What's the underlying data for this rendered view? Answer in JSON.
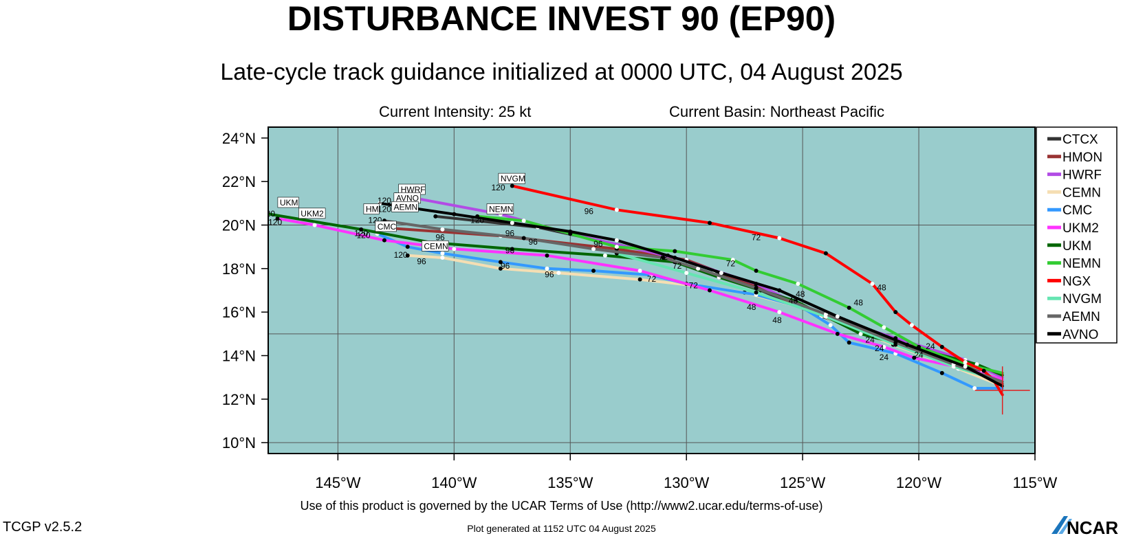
{
  "header": {
    "title": "DISTURBANCE INVEST 90 (EP90)",
    "subtitle": "Late-cycle track guidance initialized at 0000 UTC, 04 August 2025",
    "intensity": "Current Intensity: 25 kt",
    "basin": "Current Basin: Northeast Pacific"
  },
  "footer": {
    "usage": "Use of this product is governed by the UCAR Terms of Use (http://www2.ucar.edu/terms-of-use)",
    "version": "TCGP v2.5.2",
    "generated": "Plot generated at 1152 UTC   04 August 2025",
    "logo_text": "NCAR"
  },
  "chart_data": {
    "type": "line",
    "title": "DISTURBANCE INVEST 90 (EP90)",
    "xlim": [
      -148,
      -115
    ],
    "ylim": [
      9.5,
      24.5
    ],
    "x_ticks": [
      -145,
      -140,
      -135,
      -130,
      -125,
      -120,
      -115
    ],
    "x_tick_labels": [
      "145°W",
      "140°W",
      "135°W",
      "130°W",
      "125°W",
      "120°W",
      "115°W"
    ],
    "y_ticks": [
      10,
      12,
      14,
      16,
      18,
      20,
      22,
      24
    ],
    "y_tick_labels": [
      "10°N",
      "12°N",
      "14°N",
      "16°N",
      "18°N",
      "20°N",
      "22°N",
      "24°N"
    ],
    "grid": true,
    "grid_lines_lon": [
      -145,
      -140,
      -135,
      -130,
      -125,
      -120,
      -115
    ],
    "grid_lines_lat": [
      10,
      15,
      20
    ],
    "legend_position": "right",
    "land_color": "#ffffff",
    "ocean_color": "#99cccc",
    "initial_position": {
      "lon": -116.4,
      "lat": 12.4
    },
    "series": [
      {
        "name": "CTCX",
        "color": "#333333",
        "points": [
          [
            -116.4,
            12.6
          ],
          [
            -117.3,
            13.2
          ],
          [
            -120.2,
            14.5
          ],
          [
            -124.2,
            15.8
          ],
          [
            -126.8,
            17.0
          ],
          [
            -128.8,
            17.9
          ],
          [
            -130.8,
            18.6
          ],
          [
            -136.4,
            19.9
          ],
          [
            -140.8,
            20.4
          ]
        ]
      },
      {
        "name": "HMON",
        "color": "#993333",
        "points": [
          [
            -116.4,
            12.7
          ],
          [
            -118.2,
            13.6
          ],
          [
            -121.0,
            14.7
          ],
          [
            -125.0,
            16.2
          ],
          [
            -127.0,
            17.2
          ],
          [
            -130.0,
            18.4
          ],
          [
            -133.0,
            18.9
          ],
          [
            -138.0,
            19.5
          ],
          [
            -143.3,
            19.9
          ]
        ]
      },
      {
        "name": "HWRF",
        "color": "#b24ce5",
        "points": [
          [
            -116.4,
            13.0
          ],
          [
            -118.0,
            13.8
          ],
          [
            -121.0,
            14.8
          ],
          [
            -124.5,
            16.0
          ],
          [
            -127.0,
            17.3
          ],
          [
            -130.5,
            18.5
          ],
          [
            -135.0,
            19.6
          ],
          [
            -138.0,
            20.5
          ],
          [
            -142.5,
            21.4
          ]
        ],
        "lead_labels": [
          {
            "lon": -143.0,
            "lat": 20.6,
            "text": "120"
          }
        ]
      },
      {
        "name": "CEMN",
        "color": "#f5deb3",
        "points": [
          [
            -116.4,
            12.6
          ],
          [
            -118.3,
            13.4
          ],
          [
            -121.1,
            14.5
          ],
          [
            -125.0,
            16.2
          ],
          [
            -127.5,
            16.9
          ],
          [
            -129.5,
            17.2
          ],
          [
            -132.0,
            17.5
          ],
          [
            -135.5,
            17.8
          ],
          [
            -138.0,
            18.0
          ],
          [
            -140.5,
            18.5
          ],
          [
            -142.0,
            18.6
          ]
        ],
        "lead_labels": [
          {
            "lon": -142.3,
            "lat": 18.5,
            "text": "120"
          }
        ]
      },
      {
        "name": "CMC",
        "color": "#3399ff",
        "points": [
          [
            -116.4,
            12.5
          ],
          [
            -117.6,
            12.5
          ],
          [
            -119.0,
            13.2
          ],
          [
            -121.0,
            14.1
          ],
          [
            -123.0,
            14.6
          ],
          [
            -123.8,
            15.4
          ],
          [
            -125.0,
            16.2
          ],
          [
            -127.0,
            16.8
          ],
          [
            -130.0,
            17.3
          ],
          [
            -131.5,
            17.7
          ],
          [
            -134.0,
            17.9
          ],
          [
            -136.0,
            18.0
          ],
          [
            -138.0,
            18.3
          ],
          [
            -140.5,
            18.7
          ],
          [
            -142.0,
            19.0
          ],
          [
            -143.3,
            19.6
          ]
        ],
        "lead_labels": [
          {
            "lon": -141.4,
            "lat": 18.2,
            "text": "96"
          },
          {
            "lon": -137.8,
            "lat": 18.0,
            "text": "96"
          },
          {
            "lon": -135.9,
            "lat": 17.6,
            "text": "96"
          },
          {
            "lon": -131.5,
            "lat": 17.4,
            "text": "72"
          },
          {
            "lon": -129.7,
            "lat": 17.1,
            "text": "72"
          },
          {
            "lon": -143.9,
            "lat": 19.4,
            "text": "120"
          }
        ]
      },
      {
        "name": "UKM2",
        "color": "#ff33ff",
        "points": [
          [
            -116.4,
            12.9
          ],
          [
            -118.0,
            13.4
          ],
          [
            -120.2,
            13.9
          ],
          [
            -121.5,
            14.4
          ],
          [
            -123.5,
            15.0
          ],
          [
            -126.0,
            16.0
          ],
          [
            -129.0,
            17.0
          ],
          [
            -132.0,
            17.9
          ],
          [
            -136.0,
            18.6
          ],
          [
            -140.0,
            18.9
          ],
          [
            -143.0,
            19.3
          ],
          [
            -146.0,
            20.0
          ],
          [
            -147.6,
            20.3
          ]
        ],
        "lead_labels": [
          {
            "lon": -126.1,
            "lat": 15.5,
            "text": "48"
          },
          {
            "lon": -127.2,
            "lat": 16.1,
            "text": "48"
          },
          {
            "lon": -147.7,
            "lat": 20.0,
            "text": "120"
          }
        ]
      },
      {
        "name": "UKM",
        "color": "#006600",
        "points": [
          [
            -116.4,
            13.1
          ],
          [
            -117.5,
            13.6
          ],
          [
            -120.0,
            14.3
          ],
          [
            -122.5,
            15.0
          ],
          [
            -125.3,
            16.5
          ],
          [
            -128.6,
            17.6
          ],
          [
            -130.5,
            18.3
          ],
          [
            -133.5,
            18.6
          ],
          [
            -137.5,
            18.9
          ],
          [
            -141.0,
            19.2
          ],
          [
            -144.0,
            19.8
          ],
          [
            -148.5,
            20.6
          ]
        ],
        "lead_labels": [
          {
            "lon": -148.0,
            "lat": 20.4,
            "text": "120"
          },
          {
            "lon": -144.0,
            "lat": 19.5,
            "text": "120"
          }
        ]
      },
      {
        "name": "NEMN",
        "color": "#33cc33",
        "points": [
          [
            -116.4,
            13.2
          ],
          [
            -118.0,
            13.6
          ],
          [
            -120.0,
            14.4
          ],
          [
            -121.5,
            15.3
          ],
          [
            -123.0,
            16.2
          ],
          [
            -125.2,
            17.3
          ],
          [
            -127.0,
            17.9
          ],
          [
            -128.0,
            18.4
          ],
          [
            -130.5,
            18.8
          ],
          [
            -133.0,
            19.0
          ],
          [
            -135.0,
            19.6
          ],
          [
            -137.0,
            20.2
          ],
          [
            -139.0,
            20.4
          ]
        ],
        "lead_labels": [
          {
            "lon": -139.0,
            "lat": 20.1,
            "text": "120"
          },
          {
            "lon": -131.0,
            "lat": 18.4,
            "text": "72"
          },
          {
            "lon": -122.6,
            "lat": 16.3,
            "text": "48"
          }
        ]
      },
      {
        "name": "NGX",
        "color": "#ff0000",
        "points": [
          [
            -116.4,
            12.2
          ],
          [
            -116.8,
            12.9
          ],
          [
            -117.2,
            13.3
          ],
          [
            -118.0,
            13.7
          ],
          [
            -119.0,
            14.4
          ],
          [
            -120.3,
            15.4
          ],
          [
            -121.0,
            16.0
          ],
          [
            -122.0,
            17.3
          ],
          [
            -124.0,
            18.7
          ],
          [
            -126.0,
            19.4
          ],
          [
            -129.0,
            20.1
          ],
          [
            -133.0,
            20.7
          ],
          [
            -137.5,
            21.8
          ]
        ],
        "lead_labels": [
          {
            "lon": -134.2,
            "lat": 20.5,
            "text": "96"
          },
          {
            "lon": -127.0,
            "lat": 19.3,
            "text": "72"
          },
          {
            "lon": -121.6,
            "lat": 17.0,
            "text": "48"
          }
        ]
      },
      {
        "name": "NVGM",
        "color": "#66e5b2",
        "points": [
          [
            -116.4,
            12.8
          ],
          [
            -118.5,
            13.5
          ],
          [
            -121.0,
            14.5
          ],
          [
            -124.0,
            15.8
          ],
          [
            -127.0,
            16.9
          ],
          [
            -130.0,
            17.8
          ],
          [
            -133.0,
            18.7
          ]
        ],
        "lead_labels": [
          {
            "lon": -138.1,
            "lat": 21.6,
            "text": "120"
          }
        ]
      },
      {
        "name": "AEMN",
        "color": "#666666",
        "points": [
          [
            -116.4,
            12.8
          ],
          [
            -118.5,
            13.6
          ],
          [
            -121.0,
            14.6
          ],
          [
            -124.0,
            15.9
          ],
          [
            -127.0,
            17.1
          ],
          [
            -129.5,
            18.0
          ],
          [
            -131.0,
            18.5
          ],
          [
            -134.0,
            18.9
          ],
          [
            -137.0,
            19.4
          ],
          [
            -140.5,
            19.8
          ],
          [
            -143.0,
            20.2
          ]
        ],
        "lead_labels": [
          {
            "lon": -143.4,
            "lat": 20.1,
            "text": "120"
          },
          {
            "lon": -137.6,
            "lat": 19.5,
            "text": "96"
          },
          {
            "lon": -136.6,
            "lat": 19.1,
            "text": "96"
          },
          {
            "lon": -137.6,
            "lat": 18.7,
            "text": "96"
          },
          {
            "lon": -133.8,
            "lat": 19.0,
            "text": "96"
          },
          {
            "lon": -130.4,
            "lat": 18.0,
            "text": "72"
          },
          {
            "lon": -128.1,
            "lat": 18.1,
            "text": "72"
          },
          {
            "lon": -125.4,
            "lat": 16.4,
            "text": "48"
          },
          {
            "lon": -125.1,
            "lat": 16.7,
            "text": "48"
          },
          {
            "lon": -122.1,
            "lat": 14.6,
            "text": "24"
          },
          {
            "lon": -121.7,
            "lat": 14.2,
            "text": "24"
          },
          {
            "lon": -121.5,
            "lat": 13.8,
            "text": "24"
          },
          {
            "lon": -119.5,
            "lat": 14.3,
            "text": "24"
          },
          {
            "lon": -120.0,
            "lat": 13.9,
            "text": "24"
          }
        ]
      },
      {
        "name": "AVNO",
        "color": "#000000",
        "points": [
          [
            -116.4,
            12.6
          ],
          [
            -118.0,
            13.5
          ],
          [
            -120.5,
            14.5
          ],
          [
            -123.5,
            15.8
          ],
          [
            -126.0,
            17.0
          ],
          [
            -128.5,
            17.8
          ],
          [
            -130.5,
            18.5
          ],
          [
            -133.0,
            19.3
          ],
          [
            -135.0,
            19.7
          ],
          [
            -137.5,
            20.1
          ],
          [
            -140.0,
            20.5
          ],
          [
            -143.2,
            21.0
          ]
        ],
        "lead_labels": [
          {
            "lon": -143.0,
            "lat": 21.0,
            "text": "120"
          },
          {
            "lon": -140.6,
            "lat": 19.3,
            "text": "96"
          }
        ]
      }
    ],
    "end_labels": [
      {
        "text": "HWRF",
        "lon": -142.3,
        "lat": 21.5
      },
      {
        "text": "AVNO",
        "lon": -142.5,
        "lat": 21.1
      },
      {
        "text": "NVGM",
        "lon": -138.0,
        "lat": 22.0
      },
      {
        "text": "NEMN",
        "lon": -138.5,
        "lat": 20.6
      },
      {
        "text": "UKM",
        "lon": -147.5,
        "lat": 20.9
      },
      {
        "text": "UKM2",
        "lon": -146.6,
        "lat": 20.4
      },
      {
        "text": "HM",
        "lon": -143.8,
        "lat": 20.6
      },
      {
        "text": "AEMN",
        "lon": -142.6,
        "lat": 20.7
      },
      {
        "text": "CMC",
        "lon": -143.3,
        "lat": 19.8
      },
      {
        "text": "CEMN",
        "lon": -141.3,
        "lat": 18.9
      }
    ]
  }
}
